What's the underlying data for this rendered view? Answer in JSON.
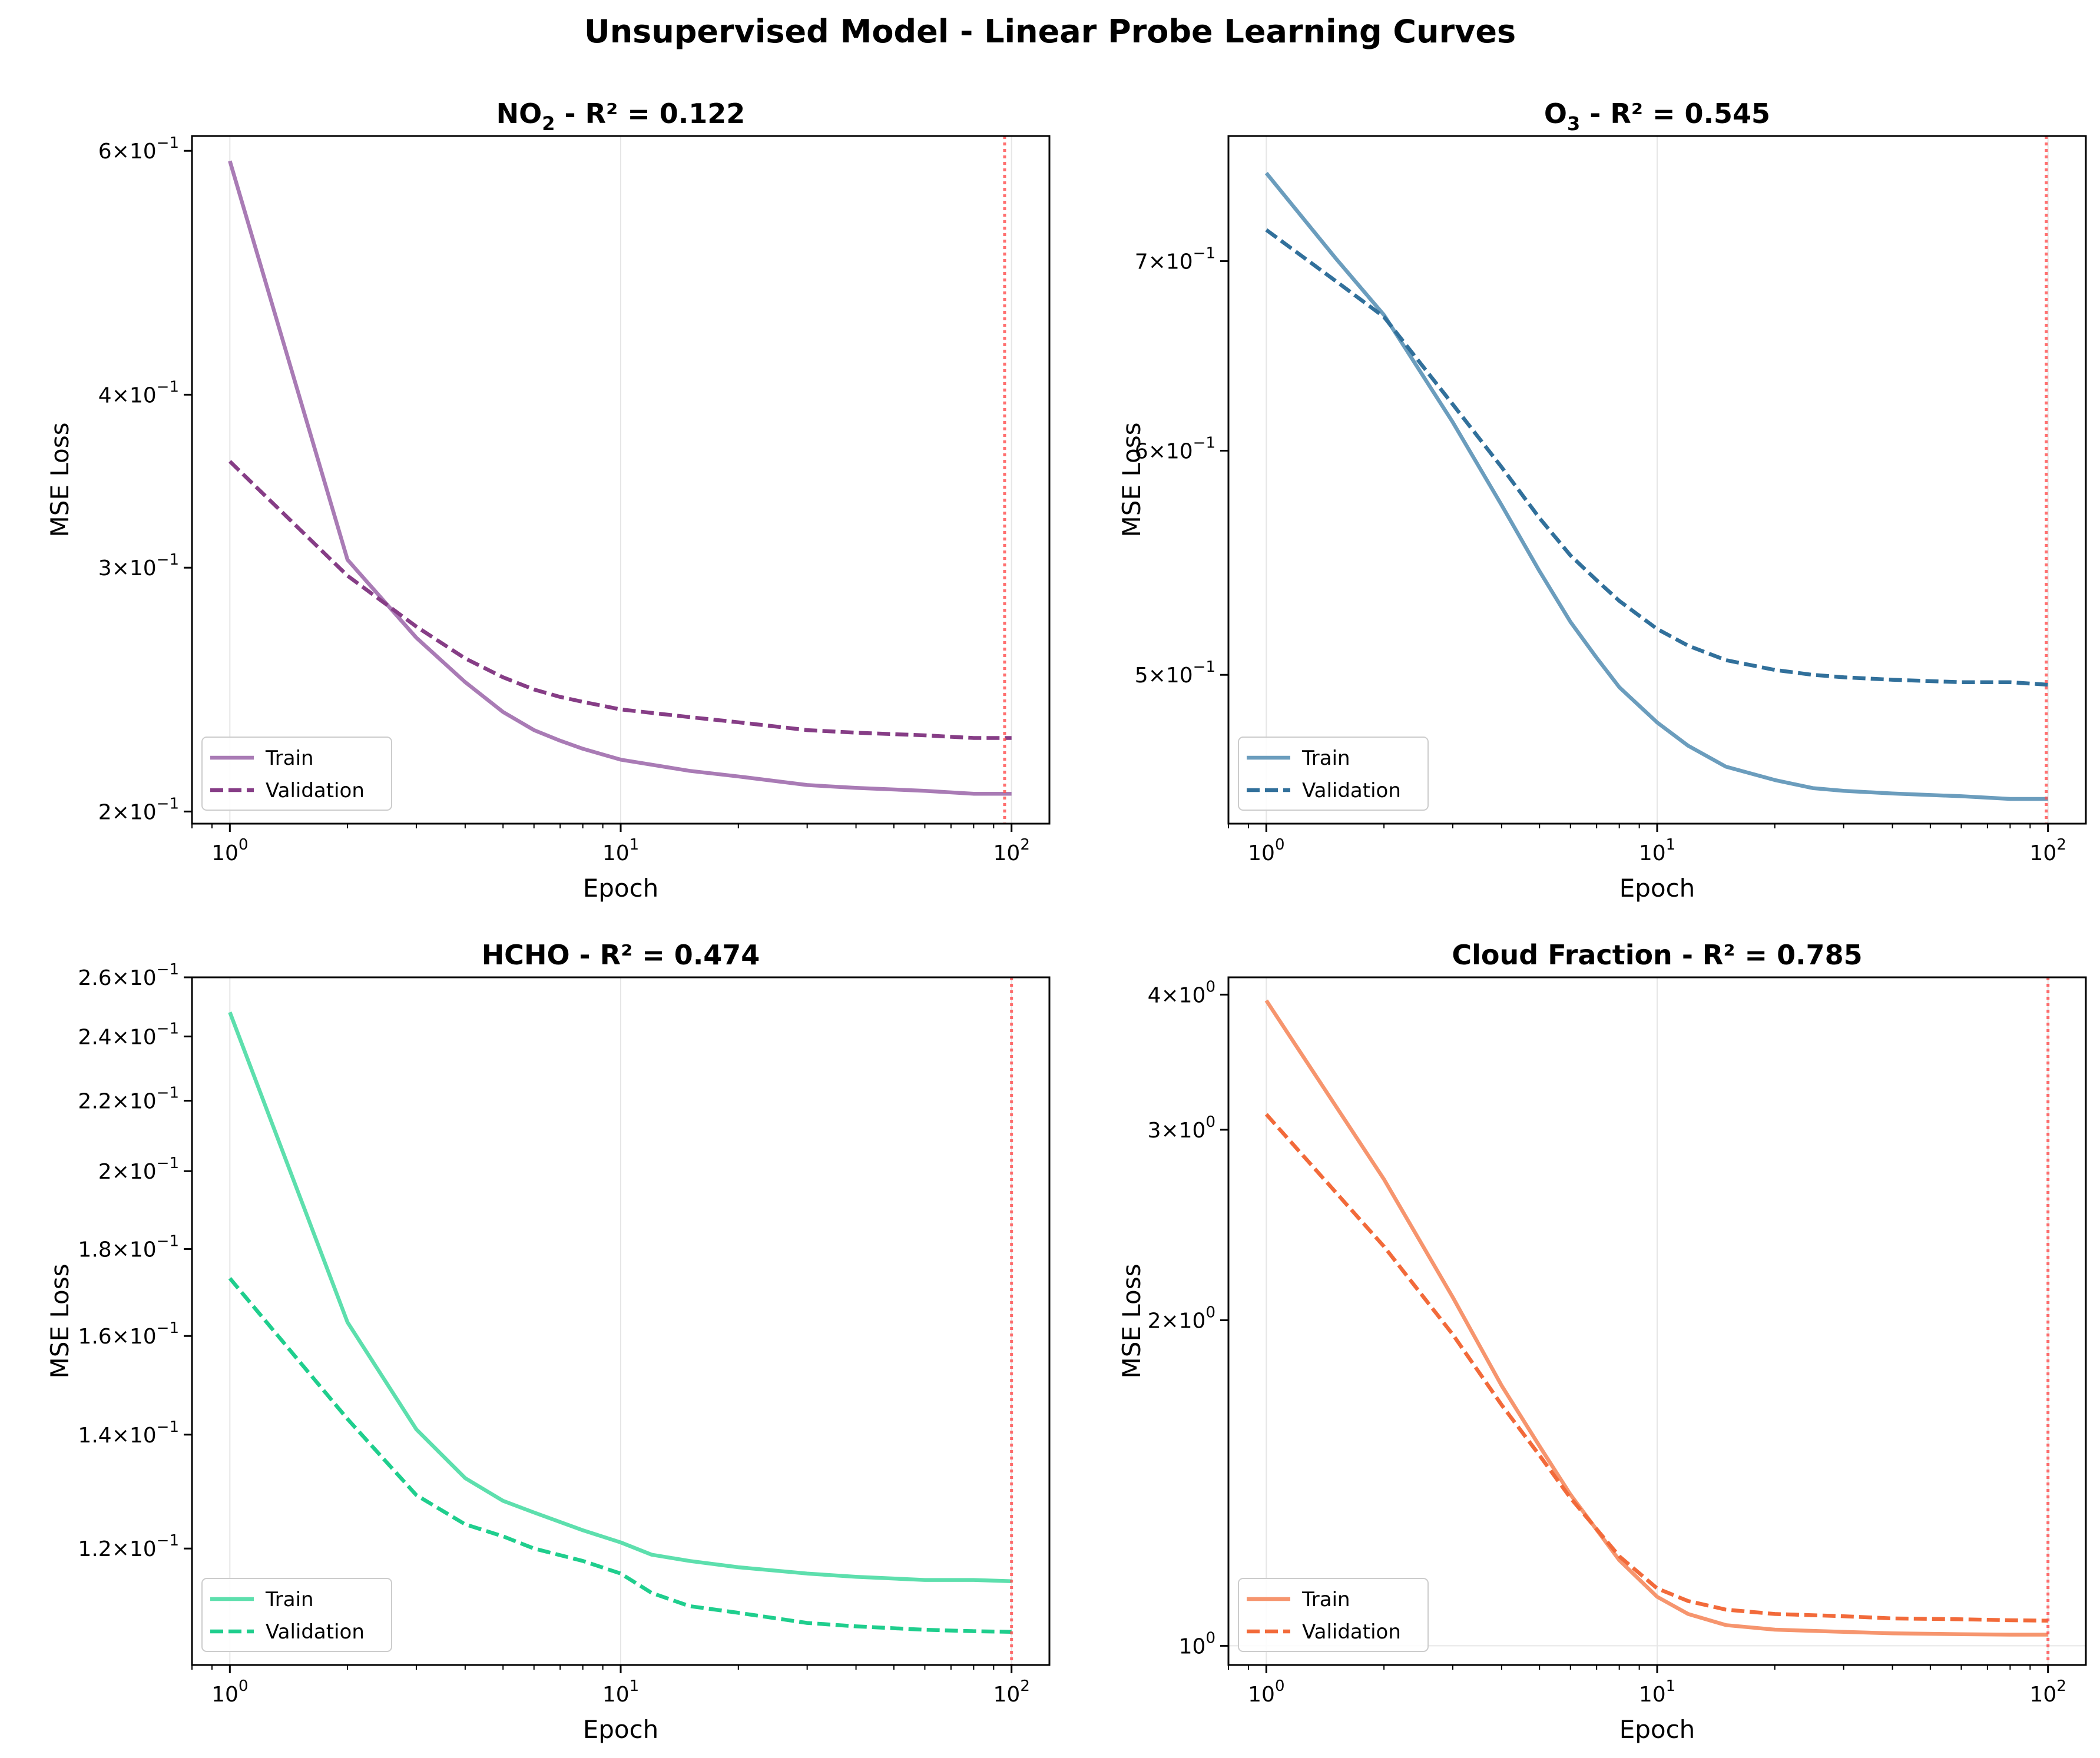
{
  "figure": {
    "title": "Unsupervised Model - Linear Probe Learning Curves"
  },
  "chart_data": [
    {
      "type": "line",
      "title_prefix": "NO",
      "title_sub": "2",
      "title_suffix": " - R² = 0.122",
      "xlabel": "Epoch",
      "ylabel": "MSE Loss",
      "xscale": "log",
      "yscale": "log",
      "xlim": [
        0.8,
        125
      ],
      "ylim": [
        0.196,
        0.615
      ],
      "xticks": [
        {
          "value": 1,
          "base": "10",
          "exp": "0"
        },
        {
          "value": 10,
          "base": "10",
          "exp": "1"
        },
        {
          "value": 100,
          "base": "10",
          "exp": "2"
        }
      ],
      "yticks": [
        {
          "value": 0.2,
          "mant": "2",
          "base": "10",
          "exp": "−1"
        },
        {
          "value": 0.3,
          "mant": "3",
          "base": "10",
          "exp": "−1"
        },
        {
          "value": 0.4,
          "mant": "4",
          "base": "10",
          "exp": "−1"
        },
        {
          "value": 0.6,
          "mant": "6",
          "base": "10",
          "exp": "−1"
        }
      ],
      "best_epoch": 96,
      "legend": {
        "position": "lower left",
        "train": "Train",
        "validation": "Validation"
      },
      "series": [
        {
          "name": "Train",
          "color": "#a97bb5",
          "dash": false,
          "x": [
            1,
            2,
            3,
            4,
            5,
            6,
            7,
            8,
            10,
            15,
            20,
            30,
            40,
            60,
            80,
            100
          ],
          "y": [
            0.59,
            0.304,
            0.267,
            0.248,
            0.236,
            0.229,
            0.225,
            0.222,
            0.218,
            0.214,
            0.212,
            0.209,
            0.208,
            0.207,
            0.206,
            0.206
          ]
        },
        {
          "name": "Validation",
          "color": "#863d86",
          "dash": true,
          "x": [
            1,
            2,
            3,
            4,
            5,
            6,
            7,
            8,
            10,
            15,
            20,
            30,
            40,
            60,
            80,
            100
          ],
          "y": [
            0.358,
            0.296,
            0.272,
            0.258,
            0.25,
            0.245,
            0.242,
            0.24,
            0.237,
            0.234,
            0.232,
            0.229,
            0.228,
            0.227,
            0.226,
            0.226
          ]
        }
      ]
    },
    {
      "type": "line",
      "title_prefix": "O",
      "title_sub": "3",
      "title_suffix": " - R² = 0.545",
      "xlabel": "Epoch",
      "ylabel": "MSE Loss",
      "xscale": "log",
      "yscale": "log",
      "xlim": [
        0.8,
        125
      ],
      "ylim": [
        0.443,
        0.775
      ],
      "xticks": [
        {
          "value": 1,
          "base": "10",
          "exp": "0"
        },
        {
          "value": 10,
          "base": "10",
          "exp": "1"
        },
        {
          "value": 100,
          "base": "10",
          "exp": "2"
        }
      ],
      "yticks": [
        {
          "value": 0.5,
          "mant": "5",
          "base": "10",
          "exp": "−1"
        },
        {
          "value": 0.6,
          "mant": "6",
          "base": "10",
          "exp": "−1"
        },
        {
          "value": 0.7,
          "mant": "7",
          "base": "10",
          "exp": "−1"
        }
      ],
      "best_epoch": 99,
      "legend": {
        "position": "lower left",
        "train": "Train",
        "validation": "Validation"
      },
      "series": [
        {
          "name": "Train",
          "color": "#6b9dbd",
          "dash": false,
          "x": [
            1,
            1.5,
            2,
            3,
            4,
            5,
            6,
            7,
            8,
            10,
            12,
            15,
            20,
            25,
            30,
            40,
            60,
            80,
            100
          ],
          "y": [
            0.752,
            0.702,
            0.67,
            0.614,
            0.574,
            0.544,
            0.522,
            0.507,
            0.495,
            0.481,
            0.472,
            0.464,
            0.459,
            0.456,
            0.455,
            0.454,
            0.453,
            0.452,
            0.452
          ]
        },
        {
          "name": "Validation",
          "color": "#31709b",
          "dash": true,
          "x": [
            1,
            1.5,
            2,
            3,
            4,
            5,
            6,
            7,
            8,
            10,
            12,
            15,
            20,
            25,
            30,
            40,
            60,
            80,
            100
          ],
          "y": [
            0.718,
            0.689,
            0.669,
            0.623,
            0.592,
            0.568,
            0.551,
            0.54,
            0.531,
            0.519,
            0.512,
            0.506,
            0.502,
            0.5,
            0.499,
            0.498,
            0.497,
            0.497,
            0.496
          ]
        }
      ]
    },
    {
      "type": "line",
      "title_prefix": "HCHO",
      "title_sub": "",
      "title_suffix": " - R² = 0.474",
      "xlabel": "Epoch",
      "ylabel": "MSE Loss",
      "xscale": "log",
      "yscale": "log",
      "xlim": [
        0.8,
        125
      ],
      "ylim": [
        0.1025,
        0.26
      ],
      "xticks": [
        {
          "value": 1,
          "base": "10",
          "exp": "0"
        },
        {
          "value": 10,
          "base": "10",
          "exp": "1"
        },
        {
          "value": 100,
          "base": "10",
          "exp": "2"
        }
      ],
      "yticks": [
        {
          "value": 0.12,
          "mant": "1.2",
          "base": "10",
          "exp": "−1"
        },
        {
          "value": 0.14,
          "mant": "1.4",
          "base": "10",
          "exp": "−1"
        },
        {
          "value": 0.16,
          "mant": "1.6",
          "base": "10",
          "exp": "−1"
        },
        {
          "value": 0.18,
          "mant": "1.8",
          "base": "10",
          "exp": "−1"
        },
        {
          "value": 0.2,
          "mant": "2",
          "base": "10",
          "exp": "−1"
        },
        {
          "value": 0.22,
          "mant": "2.2",
          "base": "10",
          "exp": "−1"
        },
        {
          "value": 0.24,
          "mant": "2.4",
          "base": "10",
          "exp": "−1"
        },
        {
          "value": 0.26,
          "mant": "2.6",
          "base": "10",
          "exp": "−1"
        }
      ],
      "best_epoch": 100,
      "legend": {
        "position": "lower left",
        "train": "Train",
        "validation": "Validation"
      },
      "series": [
        {
          "name": "Train",
          "color": "#5ddfad",
          "dash": false,
          "x": [
            1,
            2,
            3,
            4,
            5,
            6,
            8,
            10,
            12,
            15,
            20,
            30,
            40,
            60,
            80,
            100
          ],
          "y": [
            0.248,
            0.163,
            0.141,
            0.132,
            0.128,
            0.126,
            0.123,
            0.121,
            0.119,
            0.118,
            0.117,
            0.116,
            0.1155,
            0.115,
            0.115,
            0.1148
          ]
        },
        {
          "name": "Validation",
          "color": "#1fce8d",
          "dash": true,
          "x": [
            1,
            2,
            3,
            4,
            5,
            6,
            8,
            10,
            12,
            15,
            20,
            30,
            40,
            60,
            80,
            100
          ],
          "y": [
            0.173,
            0.143,
            0.129,
            0.124,
            0.122,
            0.12,
            0.118,
            0.116,
            0.113,
            0.111,
            0.11,
            0.1085,
            0.108,
            0.1075,
            0.1073,
            0.1072
          ]
        }
      ]
    },
    {
      "type": "line",
      "title_prefix": "Cloud Fraction",
      "title_sub": "",
      "title_suffix": " - R² = 0.785",
      "xlabel": "Epoch",
      "ylabel": "MSE Loss",
      "xscale": "log",
      "yscale": "log",
      "xlim": [
        0.8,
        125
      ],
      "ylim": [
        0.96,
        4.15
      ],
      "xticks": [
        {
          "value": 1,
          "base": "10",
          "exp": "0"
        },
        {
          "value": 10,
          "base": "10",
          "exp": "1"
        },
        {
          "value": 100,
          "base": "10",
          "exp": "2"
        }
      ],
      "yticks": [
        {
          "value": 1,
          "mant": "",
          "base": "10",
          "exp": "0"
        },
        {
          "value": 2,
          "mant": "2",
          "base": "10",
          "exp": "0"
        },
        {
          "value": 3,
          "mant": "3",
          "base": "10",
          "exp": "0"
        },
        {
          "value": 4,
          "mant": "4",
          "base": "10",
          "exp": "0"
        }
      ],
      "best_epoch": 100,
      "legend": {
        "position": "lower left",
        "train": "Train",
        "validation": "Validation"
      },
      "series": [
        {
          "name": "Train",
          "color": "#f6956e",
          "dash": false,
          "x": [
            1,
            2,
            3,
            4,
            5,
            6,
            8,
            10,
            12,
            15,
            20,
            30,
            40,
            60,
            80,
            100
          ],
          "y": [
            3.95,
            2.7,
            2.1,
            1.74,
            1.53,
            1.38,
            1.2,
            1.11,
            1.07,
            1.045,
            1.035,
            1.03,
            1.027,
            1.025,
            1.024,
            1.024
          ]
        },
        {
          "name": "Validation",
          "color": "#f26a3a",
          "dash": true,
          "x": [
            1,
            2,
            3,
            4,
            5,
            6,
            8,
            10,
            12,
            15,
            20,
            30,
            40,
            60,
            80,
            100
          ],
          "y": [
            3.1,
            2.34,
            1.94,
            1.67,
            1.5,
            1.37,
            1.21,
            1.13,
            1.1,
            1.08,
            1.07,
            1.065,
            1.06,
            1.058,
            1.056,
            1.055
          ]
        }
      ]
    }
  ]
}
